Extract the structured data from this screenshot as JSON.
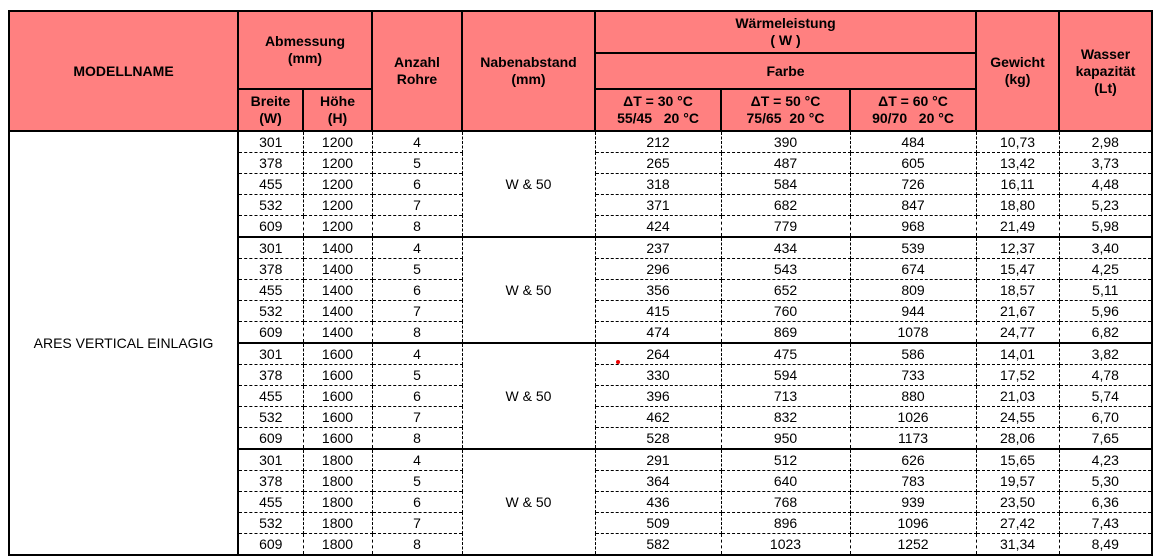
{
  "header": {
    "model": "MODELLNAME",
    "abmessung": "Abmessung\n(mm)",
    "breite": "Breite\n(W)",
    "hoehe": "Höhe\n(H)",
    "anzahl": "Anzahl\nRohre",
    "naben": "Nabenabstand\n(mm)",
    "waerme": "Wärmeleistung\n( W )",
    "farbe": "Farbe",
    "dt30": "ΔT = 30 °C\n55/45   20 °C",
    "dt50": "ΔT = 50 °C\n75/65  20 °C",
    "dt60": "ΔT = 60 °C\n90/70   20 °C",
    "gewicht": "Gewicht\n(kg)",
    "wasser": "Wasser\nkapazität\n(Lt)"
  },
  "model_name": "ARES VERTICAL EINLAGIG",
  "groups": [
    {
      "naben": "W & 50",
      "rows": [
        [
          "301",
          "1200",
          "4",
          "212",
          "390",
          "484",
          "10,73",
          "2,98"
        ],
        [
          "378",
          "1200",
          "5",
          "265",
          "487",
          "605",
          "13,42",
          "3,73"
        ],
        [
          "455",
          "1200",
          "6",
          "318",
          "584",
          "726",
          "16,11",
          "4,48"
        ],
        [
          "532",
          "1200",
          "7",
          "371",
          "682",
          "847",
          "18,80",
          "5,23"
        ],
        [
          "609",
          "1200",
          "8",
          "424",
          "779",
          "968",
          "21,49",
          "5,98"
        ]
      ]
    },
    {
      "naben": "W & 50",
      "rows": [
        [
          "301",
          "1400",
          "4",
          "237",
          "434",
          "539",
          "12,37",
          "3,40"
        ],
        [
          "378",
          "1400",
          "5",
          "296",
          "543",
          "674",
          "15,47",
          "4,25"
        ],
        [
          "455",
          "1400",
          "6",
          "356",
          "652",
          "809",
          "18,57",
          "5,11"
        ],
        [
          "532",
          "1400",
          "7",
          "415",
          "760",
          "944",
          "21,67",
          "5,96"
        ],
        [
          "609",
          "1400",
          "8",
          "474",
          "869",
          "1078",
          "24,77",
          "6,82"
        ]
      ]
    },
    {
      "naben": "W & 50",
      "rows": [
        [
          "301",
          "1600",
          "4",
          "264",
          "475",
          "586",
          "14,01",
          "3,82"
        ],
        [
          "378",
          "1600",
          "5",
          "330",
          "594",
          "733",
          "17,52",
          "4,78"
        ],
        [
          "455",
          "1600",
          "6",
          "396",
          "713",
          "880",
          "21,03",
          "5,74"
        ],
        [
          "532",
          "1600",
          "7",
          "462",
          "832",
          "1026",
          "24,55",
          "6,70"
        ],
        [
          "609",
          "1600",
          "8",
          "528",
          "950",
          "1173",
          "28,06",
          "7,65"
        ]
      ]
    },
    {
      "naben": "W & 50",
      "rows": [
        [
          "301",
          "1800",
          "4",
          "291",
          "512",
          "626",
          "15,65",
          "4,23"
        ],
        [
          "378",
          "1800",
          "5",
          "364",
          "640",
          "783",
          "19,57",
          "5,30"
        ],
        [
          "455",
          "1800",
          "6",
          "436",
          "768",
          "939",
          "23,50",
          "6,36"
        ],
        [
          "532",
          "1800",
          "7",
          "509",
          "896",
          "1096",
          "27,42",
          "7,43"
        ],
        [
          "609",
          "1800",
          "8",
          "582",
          "1023",
          "1252",
          "31,34",
          "8,49"
        ]
      ]
    }
  ],
  "colors": {
    "header_bg": "#ff8080",
    "border": "#000000"
  }
}
